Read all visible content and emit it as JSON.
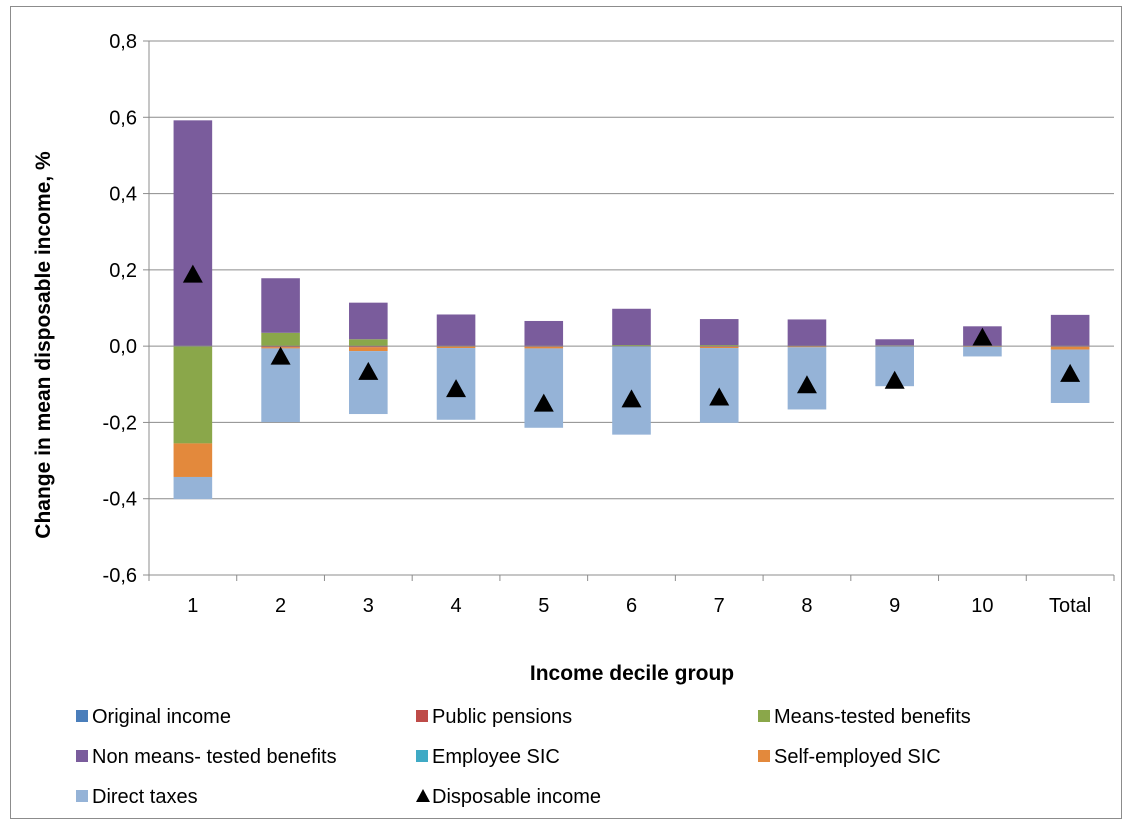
{
  "chart_data": {
    "type": "bar",
    "stacked": true,
    "title": "",
    "xlabel": "Income decile group",
    "ylabel": "Change in mean disposable income, %",
    "ylim": [
      -0.6,
      0.8
    ],
    "ytick_step": 0.2,
    "ytick_labels": [
      "-0,6",
      "-0,4",
      "-0,2",
      "0,0",
      "0,2",
      "0,4",
      "0,6",
      "0,8"
    ],
    "grid": true,
    "legend_position": "bottom",
    "categories": [
      "1",
      "2",
      "3",
      "4",
      "5",
      "6",
      "7",
      "8",
      "9",
      "10",
      "Total"
    ],
    "series": [
      {
        "name": "Original income",
        "kind": "bar",
        "color": "#4a7ebb",
        "values": [
          0,
          0,
          0,
          0,
          0,
          0,
          0,
          0,
          0,
          0,
          0
        ]
      },
      {
        "name": "Public pensions",
        "kind": "bar",
        "color": "#be4b48",
        "values": [
          0,
          -0.003,
          -0.003,
          0,
          -0.002,
          0,
          -0.002,
          0,
          0,
          0,
          -0.002
        ]
      },
      {
        "name": "Means-tested benefits",
        "kind": "bar",
        "color": "#8aa74a",
        "values": [
          -0.255,
          0.035,
          0.018,
          0,
          0,
          0.003,
          0.003,
          0,
          0.002,
          0,
          0
        ]
      },
      {
        "name": "Non means- tested benefits",
        "kind": "bar",
        "color": "#7a5c9c",
        "values": [
          0.592,
          0.143,
          0.096,
          0.083,
          0.066,
          0.095,
          0.068,
          0.07,
          0.016,
          0.052,
          0.082
        ]
      },
      {
        "name": "Employee SIC",
        "kind": "bar",
        "color": "#3faac5",
        "values": [
          0,
          0,
          0,
          0,
          0,
          0,
          0,
          0,
          0,
          0,
          0
        ]
      },
      {
        "name": "Self-employed SIC",
        "kind": "bar",
        "color": "#e3893c",
        "values": [
          -0.088,
          -0.003,
          -0.01,
          -0.005,
          -0.004,
          0,
          -0.003,
          -0.003,
          0,
          -0.002,
          -0.007
        ]
      },
      {
        "name": "Direct taxes",
        "kind": "bar",
        "color": "#95b3d7",
        "values": [
          -0.058,
          -0.193,
          -0.165,
          -0.188,
          -0.208,
          -0.232,
          -0.196,
          -0.163,
          -0.105,
          -0.025,
          -0.14
        ]
      },
      {
        "name": "Disposable income",
        "kind": "marker",
        "marker": "triangle",
        "color": "#000000",
        "values": [
          0.19,
          -0.025,
          -0.065,
          -0.11,
          -0.148,
          -0.137,
          -0.132,
          -0.1,
          -0.088,
          0.025,
          -0.07
        ]
      }
    ]
  }
}
